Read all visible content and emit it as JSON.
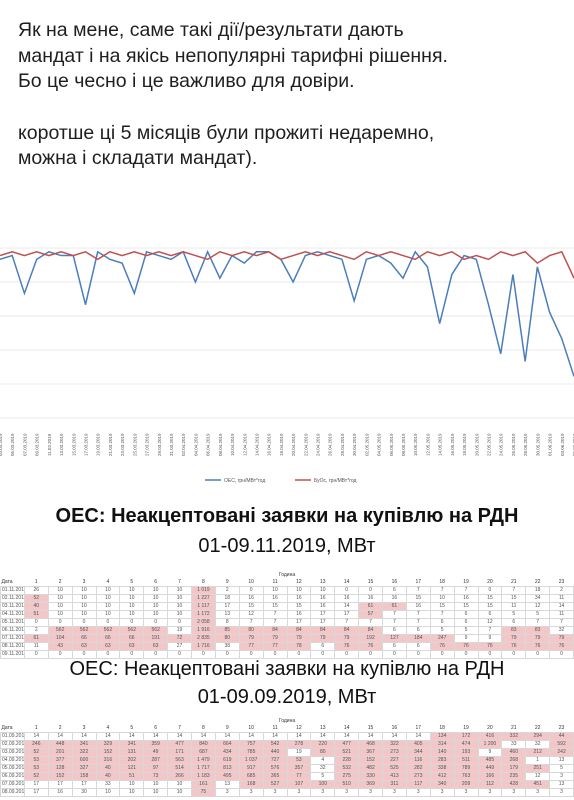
{
  "post": {
    "paragraph1": "Як на мене, саме такі дії/результати дають\nмандат і на якісь непопулярні тарифні рішення.\nБо це чесно і це важливо для довіри.",
    "paragraph2": "коротше ці 5 місяців були прожиті недаремно,\nможна і складати мандат)."
  },
  "chart_data": {
    "type": "line",
    "x": [
      "03.03.2019",
      "05.03.2019",
      "07.03.2019",
      "09.03.2019",
      "11.03.2019",
      "13.03.2019",
      "15.03.2019",
      "17.03.2019",
      "19.03.2019",
      "21.03.2019",
      "23.03.2019",
      "25.03.2019",
      "27.03.2019",
      "29.03.2019",
      "31.03.2019",
      "02.04.2019",
      "04.04.2019",
      "06.04.2019",
      "08.04.2019",
      "10.04.2019",
      "12.04.2019",
      "14.04.2019",
      "16.04.2019",
      "18.04.2019",
      "20.04.2019",
      "22.04.2019",
      "24.04.2019",
      "26.04.2019",
      "28.04.2019",
      "30.04.2019",
      "02.05.2019",
      "04.05.2019",
      "06.05.2019",
      "08.05.2019",
      "10.05.2019",
      "12.05.2019",
      "14.05.2019",
      "16.05.2019",
      "18.05.2019",
      "20.05.2019",
      "22.05.2019",
      "24.05.2019",
      "26.05.2019",
      "28.05.2019",
      "30.05.2019",
      "01.06.2019",
      "03.06.2019",
      "05.06.2019"
    ],
    "series": [
      {
        "name": "ОЕС, грн/МВт*год",
        "color": "#4a7ebb",
        "values": [
          97,
          98,
          88,
          97,
          99,
          98,
          98,
          85,
          99,
          97,
          96,
          88,
          99,
          98,
          97,
          99,
          91,
          99,
          92,
          98,
          96,
          99,
          99,
          97,
          91,
          98,
          99,
          98,
          97,
          86,
          97,
          98,
          96,
          92,
          99,
          95,
          80,
          93,
          98,
          97,
          85,
          72,
          93,
          70,
          95,
          83,
          76,
          66
        ]
      },
      {
        "name": "БуОс, грн/МВт*год",
        "color": "#c0504d",
        "values": [
          98,
          99,
          98,
          99,
          98,
          99,
          98,
          99,
          97,
          99,
          98,
          99,
          98,
          99,
          98,
          99,
          98,
          97,
          99,
          98,
          99,
          98,
          99,
          97,
          98,
          99,
          98,
          99,
          98,
          97,
          99,
          98,
          99,
          98,
          97,
          99,
          98,
          99,
          97,
          98,
          97,
          99,
          98,
          99,
          96,
          98,
          99,
          92
        ]
      }
    ],
    "ylim": [
      55,
      100
    ],
    "grid": true,
    "legend": "bottom"
  },
  "table1": {
    "title": "ОЕС: Неакцептовані заявки на купівлю на РДН",
    "subtitle": "01-09.11.2019, МВт",
    "caption": "Година",
    "header": [
      "Дата",
      "1",
      "2",
      "3",
      "4",
      "5",
      "6",
      "7",
      "8",
      "9",
      "10",
      "11",
      "12",
      "13",
      "14",
      "15",
      "16",
      "17",
      "18",
      "19",
      "20",
      "21",
      "22",
      "23"
    ],
    "rows": [
      [
        "01.11.2019",
        "26",
        "10",
        "10",
        "10",
        "10",
        "10",
        "10",
        "1 019",
        "2",
        "0",
        "10",
        "10",
        "10",
        "0",
        "0",
        "6",
        "7",
        "7",
        "7",
        "0",
        "7",
        "18",
        "2"
      ],
      [
        "02.11.2019",
        "52",
        "10",
        "10",
        "10",
        "10",
        "10",
        "10",
        "1 227",
        "18",
        "16",
        "16",
        "16",
        "16",
        "16",
        "16",
        "16",
        "15",
        "10",
        "16",
        "15",
        "15",
        "34",
        "11"
      ],
      [
        "03.11.2019",
        "40",
        "10",
        "10",
        "10",
        "10",
        "10",
        "10",
        "1 117",
        "17",
        "15",
        "15",
        "15",
        "16",
        "14",
        "61",
        "61",
        "16",
        "15",
        "15",
        "15",
        "11",
        "12",
        "14"
      ],
      [
        "04.11.2019",
        "51",
        "10",
        "10",
        "10",
        "10",
        "10",
        "10",
        "1 172",
        "13",
        "12",
        "7",
        "16",
        "17",
        "17",
        "57",
        "7",
        "7",
        "7",
        "6",
        "6",
        "5",
        "5",
        "11"
      ],
      [
        "05.11.2019",
        "0",
        "0",
        "0",
        "0",
        "0",
        "0",
        "0",
        "2 058",
        "8",
        "7",
        "7",
        "17",
        "17",
        "7",
        "7",
        "7",
        "7",
        "6",
        "6",
        "12",
        "6",
        "7",
        "7"
      ],
      [
        "06.11.2019",
        "2",
        "562",
        "562",
        "562",
        "562",
        "562",
        "19",
        "1 916",
        "85",
        "80",
        "84",
        "84",
        "84",
        "84",
        "84",
        "6",
        "6",
        "5",
        "5",
        "7",
        "83",
        "83",
        "32"
      ],
      [
        "07.11.2019",
        "61",
        "104",
        "66",
        "66",
        "66",
        "191",
        "72",
        "2 835",
        "80",
        "79",
        "79",
        "79",
        "79",
        "79",
        "192",
        "127",
        "184",
        "247",
        "9",
        "9",
        "79",
        "79",
        "79"
      ],
      [
        "08.11.2019",
        "11",
        "43",
        "63",
        "63",
        "63",
        "63",
        "27",
        "1 716",
        "38",
        "77",
        "77",
        "78",
        "6",
        "76",
        "76",
        "6",
        "6",
        "76",
        "76",
        "76",
        "76",
        "76",
        "76"
      ],
      [
        "09.11.2019",
        "0",
        "0",
        "0",
        "0",
        "0",
        "0",
        "0",
        "0",
        "0",
        "0",
        "0",
        "0",
        "0",
        "0",
        "0",
        "0",
        "0",
        "0",
        "0",
        "0",
        "0",
        "0",
        "0"
      ]
    ]
  },
  "table2": {
    "title": "ОЕС: Неакцептовані заявки на купівлю на РДН",
    "subtitle": "01-09.09.2019, МВт",
    "caption": "Година",
    "header": [
      "Дата",
      "1",
      "2",
      "3",
      "4",
      "5",
      "6",
      "7",
      "8",
      "9",
      "10",
      "11",
      "12",
      "13",
      "14",
      "15",
      "16",
      "17",
      "18",
      "19",
      "20",
      "21",
      "22",
      "23"
    ],
    "rows": [
      [
        "01.09.2019",
        "14",
        "14",
        "14",
        "14",
        "14",
        "14",
        "14",
        "14",
        "14",
        "14",
        "14",
        "14",
        "14",
        "14",
        "14",
        "14",
        "14",
        "134",
        "172",
        "416",
        "332",
        "294",
        "44"
      ],
      [
        "02.09.2019",
        "246",
        "448",
        "341",
        "329",
        "341",
        "359",
        "477",
        "840",
        "664",
        "757",
        "542",
        "278",
        "220",
        "477",
        "468",
        "322",
        "405",
        "314",
        "474",
        "1 200",
        "33",
        "32",
        "592"
      ],
      [
        "03.09.2019",
        "52",
        "201",
        "322",
        "152",
        "131",
        "49",
        "171",
        "687",
        "434",
        "785",
        "440",
        "19",
        "80",
        "521",
        "367",
        "273",
        "344",
        "140",
        "193",
        "9",
        "460",
        "212",
        "242"
      ],
      [
        "04.09.2019",
        "53",
        "377",
        "600",
        "316",
        "202",
        "287",
        "563",
        "1 479",
        "619",
        "1 037",
        "727",
        "53",
        "4",
        "228",
        "152",
        "227",
        "116",
        "283",
        "511",
        "485",
        "268",
        "1",
        "13"
      ],
      [
        "05.09.2019",
        "53",
        "128",
        "327",
        "40",
        "121",
        "97",
        "514",
        "1 717",
        "813",
        "917",
        "576",
        "357",
        "32",
        "532",
        "482",
        "525",
        "282",
        "338",
        "789",
        "449",
        "179",
        "251",
        "5"
      ],
      [
        "06.09.2019",
        "52",
        "152",
        "158",
        "40",
        "51",
        "73",
        "266",
        "1 183",
        "495",
        "685",
        "365",
        "77",
        "5",
        "275",
        "330",
        "413",
        "273",
        "412",
        "763",
        "166",
        "235",
        "12",
        "3"
      ],
      [
        "07.09.2019",
        "17",
        "17",
        "17",
        "33",
        "10",
        "10",
        "10",
        "161",
        "13",
        "168",
        "527",
        "107",
        "100",
        "510",
        "369",
        "311",
        "117",
        "340",
        "209",
        "112",
        "428",
        "451",
        "13"
      ],
      [
        "08.09.2019",
        "17",
        "16",
        "30",
        "10",
        "10",
        "10",
        "10",
        "75",
        "3",
        "3",
        "3",
        "3",
        "3",
        "3",
        "3",
        "3",
        "3",
        "3",
        "3",
        "3",
        "3",
        "3",
        "3"
      ]
    ]
  }
}
